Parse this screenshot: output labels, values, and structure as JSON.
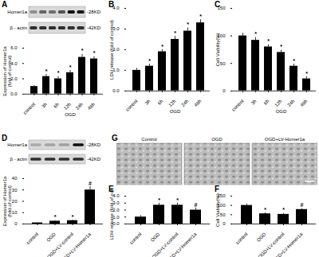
{
  "chart_data": [
    {
      "type": "bar",
      "panel": "A",
      "y_label": "Expression of Homer1a\n(fold of control)",
      "categories": [
        "control",
        "3h",
        "6h",
        "12h",
        "24h",
        "48h"
      ],
      "values": [
        1.0,
        2.3,
        2.0,
        2.8,
        4.8,
        4.6
      ],
      "errors": [
        0.1,
        0.3,
        0.3,
        0.3,
        0.4,
        0.3
      ],
      "annotations": [
        null,
        "*",
        "*",
        "*",
        "*",
        "*"
      ],
      "group": {
        "label": "OGD",
        "categories": [
          "3h",
          "6h",
          "12h",
          "24h",
          "48h"
        ]
      },
      "color": "#000000",
      "ylim": [
        0,
        6
      ],
      "yticks": [
        0,
        2,
        4,
        6
      ]
    },
    {
      "type": "bar",
      "panel": "B",
      "y_label": "LDH release (fold of control)",
      "categories": [
        "control",
        "3h",
        "6h",
        "12h",
        "24h",
        "48h"
      ],
      "values": [
        1.0,
        1.2,
        1.9,
        2.5,
        2.9,
        3.3
      ],
      "errors": [
        0.1,
        0.1,
        0.1,
        0.15,
        0.15,
        0.15
      ],
      "annotations": [
        null,
        "*",
        "*",
        "*",
        "*",
        "*"
      ],
      "group": {
        "label": "OGD",
        "categories": [
          "3h",
          "6h",
          "12h",
          "24h",
          "48h"
        ]
      },
      "color": "#000000",
      "ylim": [
        0,
        4
      ],
      "yticks": [
        0,
        1,
        2,
        3,
        4
      ]
    },
    {
      "type": "bar",
      "panel": "C",
      "y_label": "Cell Viability(%)",
      "categories": [
        "control",
        "3h",
        "6h",
        "12h",
        "24h",
        "48h"
      ],
      "values": [
        100,
        92,
        80,
        70,
        45,
        22
      ],
      "errors": [
        5,
        5,
        4,
        4,
        4,
        4
      ],
      "annotations": [
        null,
        "*",
        "*",
        "*",
        "*",
        "*"
      ],
      "group": {
        "label": "OGD",
        "categories": [
          "3h",
          "6h",
          "12h",
          "24h",
          "48h"
        ]
      },
      "color": "#000000",
      "ylim": [
        0,
        150
      ],
      "yticks": [
        0,
        50,
        100,
        150
      ]
    },
    {
      "type": "bar",
      "panel": "D",
      "y_label": "Expression of Homer1a\n(fold of control)",
      "categories": [
        "control",
        "OGD",
        "OGD+LV-control",
        "OGD+LV-Homer1a"
      ],
      "values": [
        1,
        2.5,
        3,
        30
      ],
      "errors": [
        0.3,
        0.5,
        0.5,
        3
      ],
      "annotations": [
        null,
        "*",
        "*",
        "#"
      ],
      "color": "#000000",
      "ylim": [
        0,
        40
      ],
      "yticks": [
        0,
        10,
        20,
        30,
        40
      ]
    },
    {
      "type": "bar",
      "panel": "E",
      "y_label": "LDH release (fold of control)",
      "categories": [
        "control",
        "OGD",
        "OGD+LV-control",
        "OGD+LV-Homer1a"
      ],
      "values": [
        1.0,
        2.7,
        2.7,
        2.0
      ],
      "errors": [
        0.2,
        0.3,
        0.3,
        0.3
      ],
      "annotations": [
        null,
        "*",
        "*",
        "#"
      ],
      "color": "#000000",
      "ylim": [
        0,
        4
      ],
      "yticks": [
        0,
        1,
        2,
        3,
        4
      ]
    },
    {
      "type": "bar",
      "panel": "F",
      "y_label": "Cell Viability(%)",
      "categories": [
        "control",
        "OGD",
        "OGD+LV-control",
        "OGD+LV-Homer1a"
      ],
      "values": [
        100,
        55,
        52,
        78
      ],
      "errors": [
        8,
        5,
        5,
        5
      ],
      "annotations": [
        null,
        "*",
        "*",
        "#"
      ],
      "color": "#000000",
      "ylim": [
        0,
        150
      ],
      "yticks": [
        0,
        50,
        100,
        150
      ]
    }
  ],
  "blots": [
    {
      "panel": "A",
      "rows": [
        {
          "protein": "Homer1a",
          "size": "-28KD"
        },
        {
          "protein": "β - actin",
          "size": "-42KD"
        }
      ]
    },
    {
      "panel": "D",
      "rows": [
        {
          "protein": "Homer1a",
          "size": "-28KD"
        },
        {
          "protein": "β - actin",
          "size": "-42KD"
        }
      ]
    }
  ],
  "micrographs": {
    "panel": "G",
    "labels": [
      "Control",
      "OGD",
      "OGD+LV-Homer1a"
    ]
  }
}
